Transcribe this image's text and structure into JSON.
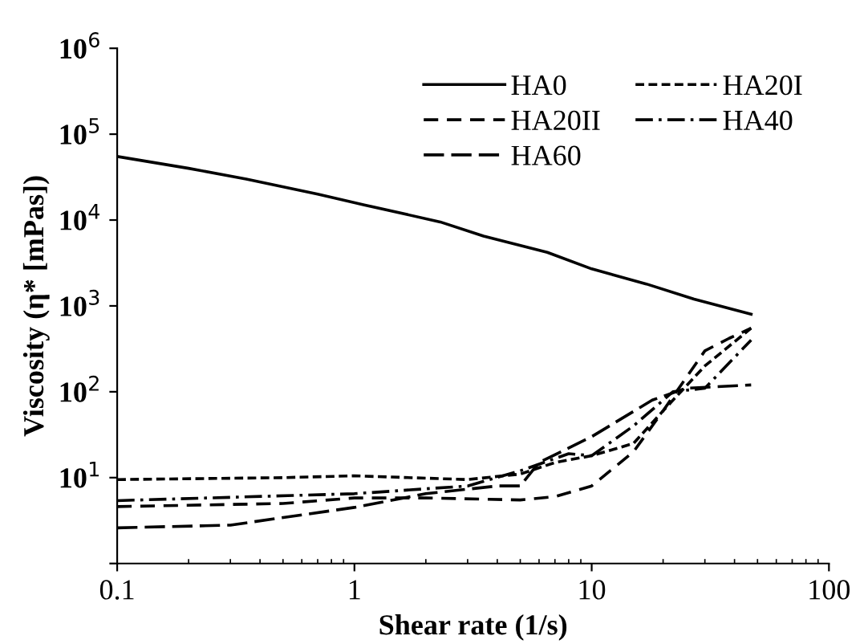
{
  "chart_data": {
    "type": "line",
    "xlabel": "Shear rate (1/s)",
    "ylabel": "Viscosity (η* [mPas])",
    "log": "xy",
    "legend": "top right",
    "grid": false,
    "xlim": [
      0.1,
      100
    ],
    "xticks": [
      0.1,
      1,
      10,
      100
    ],
    "ylim": [
      1,
      1000000
    ],
    "yticks": [
      {
        "value": 1,
        "label": null
      },
      {
        "value": 10,
        "label": "10$^{1}$"
      },
      {
        "value": 100,
        "label": "10$^{2}$"
      },
      {
        "value": 1000,
        "label": "10$^{3}$"
      },
      {
        "value": 10000,
        "label": "10$^{4}$"
      },
      {
        "value": 100000,
        "label": "10$^{5}$"
      },
      {
        "value": 1000000,
        "label": "10$^{6}$"
      }
    ],
    "series": [
      {
        "name": "HA0",
        "color": "#000000",
        "line_style": "solid",
        "x": [
          0.1,
          0.2,
          0.35,
          0.7,
          1.1,
          2.3,
          3.5,
          6.5,
          10,
          17,
          27,
          47
        ],
        "values": [
          55000,
          40000,
          30000,
          20000,
          15000,
          9500,
          6500,
          4200,
          2700,
          1800,
          1200,
          800
        ]
      },
      {
        "name": "HA20I",
        "color": "#000000",
        "line_style": "dotted",
        "x": [
          0.1,
          0.5,
          1,
          3,
          5,
          7,
          10,
          15,
          20,
          30,
          47
        ],
        "values": [
          9.5,
          10,
          10.5,
          9.5,
          11,
          15,
          18,
          25,
          60,
          200,
          550
        ]
      },
      {
        "name": "HA20II",
        "color": "#000000",
        "line_style": "dashed",
        "x": [
          0.1,
          0.5,
          1,
          2,
          5,
          7,
          10,
          15,
          20,
          30,
          38,
          47
        ],
        "values": [
          4.6,
          5,
          5.8,
          5.8,
          5.5,
          6,
          8,
          20,
          60,
          300,
          420,
          550
        ]
      },
      {
        "name": "HA40",
        "color": "#000000",
        "line_style": "dashdot",
        "x": [
          0.1,
          1,
          3,
          5,
          8,
          10,
          15,
          22,
          30,
          47
        ],
        "values": [
          5.4,
          6.5,
          8,
          12,
          19,
          18,
          40,
          100,
          110,
          400
        ]
      },
      {
        "name": "HA60",
        "color": "#000000",
        "line_style": "longdash",
        "x": [
          0.1,
          0.3,
          1,
          2,
          4,
          5,
          6,
          10,
          18,
          25,
          47
        ],
        "values": [
          2.6,
          2.8,
          4.5,
          6.5,
          8,
          8,
          15,
          30,
          80,
          110,
          120
        ]
      }
    ]
  }
}
